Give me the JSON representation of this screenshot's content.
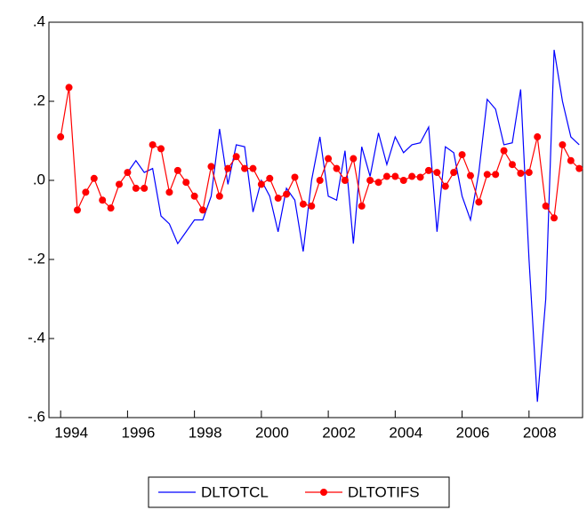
{
  "chart_data": {
    "type": "line",
    "x": [
      1994,
      1994.25,
      1994.5,
      1994.75,
      1995,
      1995.25,
      1995.5,
      1995.75,
      1996,
      1996.25,
      1996.5,
      1996.75,
      1997,
      1997.25,
      1997.5,
      1997.75,
      1998,
      1998.25,
      1998.5,
      1998.75,
      1999,
      1999.25,
      1999.5,
      1999.75,
      2000,
      2000.25,
      2000.5,
      2000.75,
      2001,
      2001.25,
      2001.5,
      2001.75,
      2002,
      2002.25,
      2002.5,
      2002.75,
      2003,
      2003.25,
      2003.5,
      2003.75,
      2004,
      2004.25,
      2004.5,
      2004.75,
      2005,
      2005.25,
      2005.5,
      2005.75,
      2006,
      2006.25,
      2006.5,
      2006.75,
      2007,
      2007.25,
      2007.5,
      2007.75,
      2008,
      2008.25,
      2008.5,
      2008.75,
      2009,
      2009.25,
      2009.5
    ],
    "series": [
      {
        "name": "DLTOTCL",
        "color": "#0000ff",
        "marker": false,
        "values": [
          null,
          null,
          null,
          null,
          null,
          null,
          null,
          null,
          0.02,
          0.05,
          0.02,
          0.03,
          -0.09,
          -0.11,
          -0.16,
          -0.13,
          -0.1,
          -0.1,
          -0.04,
          0.13,
          -0.01,
          0.09,
          0.085,
          -0.08,
          0.0,
          -0.04,
          -0.13,
          -0.02,
          -0.05,
          -0.18,
          0.0,
          0.11,
          -0.04,
          -0.05,
          0.075,
          -0.16,
          0.085,
          0.01,
          0.12,
          0.04,
          0.11,
          0.07,
          0.09,
          0.095,
          0.135,
          -0.13,
          0.085,
          0.07,
          -0.04,
          -0.1,
          0.02,
          0.205,
          0.18,
          0.09,
          0.095,
          0.23,
          -0.2,
          -0.56,
          -0.3,
          0.33,
          0.2,
          0.11,
          0.09
        ]
      },
      {
        "name": "DLTOTIFS",
        "color": "#ff0000",
        "marker": true,
        "values": [
          0.11,
          0.235,
          -0.075,
          -0.03,
          0.005,
          -0.05,
          -0.07,
          -0.01,
          0.02,
          -0.02,
          -0.02,
          0.09,
          0.08,
          -0.03,
          0.025,
          -0.005,
          -0.04,
          -0.075,
          0.035,
          -0.04,
          0.03,
          0.06,
          0.03,
          0.03,
          -0.01,
          0.005,
          -0.045,
          -0.035,
          0.008,
          -0.06,
          -0.065,
          0.0,
          0.055,
          0.03,
          0.0,
          0.055,
          -0.065,
          0.0,
          -0.005,
          0.01,
          0.01,
          0.0,
          0.01,
          0.008,
          0.025,
          0.02,
          -0.015,
          0.02,
          0.065,
          0.012,
          -0.055,
          0.015,
          0.015,
          0.075,
          0.04,
          0.018,
          0.02,
          0.11,
          -0.065,
          -0.095,
          0.09,
          0.05,
          0.03
        ]
      }
    ],
    "xlim": [
      1993.65,
      2009.6
    ],
    "xticks": [
      1994,
      1996,
      1998,
      2000,
      2002,
      2004,
      2006,
      2008
    ],
    "ylim": [
      -0.6,
      0.4
    ],
    "yticks": [
      {
        "value": -0.6,
        "label": "-.6"
      },
      {
        "value": -0.4,
        "label": "-.4"
      },
      {
        "value": -0.2,
        "label": "-.2"
      },
      {
        "value": 0.0,
        "label": ".0"
      },
      {
        "value": 0.2,
        "label": ".2"
      },
      {
        "value": 0.4,
        "label": ".4"
      }
    ],
    "legend": "bottom"
  }
}
